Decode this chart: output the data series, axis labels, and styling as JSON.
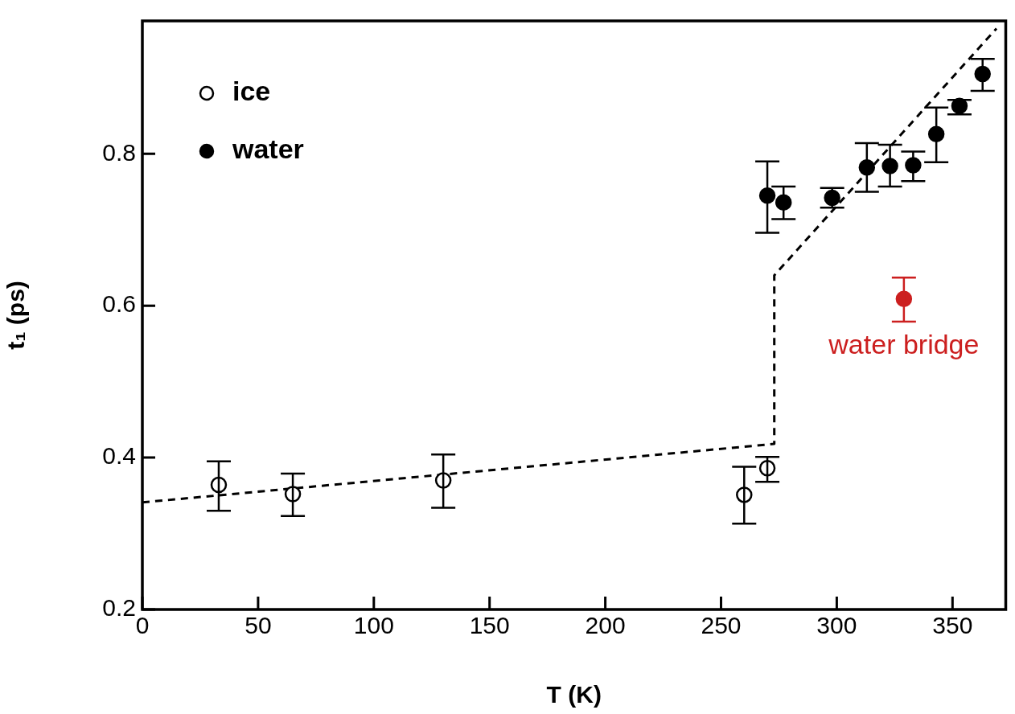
{
  "chart_data": {
    "type": "scatter",
    "xlabel": "T (K)",
    "ylabel": "t₁ (ps)",
    "xlim": [
      0,
      373
    ],
    "xticks": [
      0,
      50,
      100,
      150,
      200,
      250,
      300,
      350
    ],
    "ylim": [
      0.2,
      0.975
    ],
    "yticks": [
      0.2,
      0.4,
      0.6,
      0.8
    ],
    "grid": false,
    "legend": "top left",
    "marker": "circle",
    "series": [
      {
        "name": "ice",
        "color": "#ffffff",
        "x": [
          33,
          65,
          130,
          260,
          270
        ],
        "values": [
          0.364,
          0.352,
          0.37,
          0.351,
          0.386
        ],
        "errors": [
          [
            0.33,
            0.395
          ],
          [
            0.323,
            0.379
          ],
          [
            0.334,
            0.404
          ],
          [
            0.313,
            0.388
          ],
          [
            0.368,
            0.401
          ]
        ]
      },
      {
        "name": "water",
        "color": "#000000",
        "x": [
          270,
          277,
          298,
          313,
          323,
          333,
          343,
          353,
          363
        ],
        "values": [
          0.745,
          0.736,
          0.742,
          0.782,
          0.784,
          0.785,
          0.826,
          0.863,
          0.905
        ],
        "errors": [
          [
            0.696,
            0.79
          ],
          [
            0.714,
            0.757
          ],
          [
            0.729,
            0.755
          ],
          [
            0.75,
            0.814
          ],
          [
            0.757,
            0.812
          ],
          [
            0.764,
            0.803
          ],
          [
            0.789,
            0.861
          ],
          [
            0.852,
            0.871
          ],
          [
            0.883,
            0.925
          ]
        ]
      },
      {
        "color": "#cc1f1f",
        "x": [
          329
        ],
        "values": [
          0.609
        ],
        "errors": [
          [
            0.579,
            0.637
          ]
        ]
      },
      {
        "type": "line",
        "color": "#000000",
        "marker": "none",
        "line_style": "dashed",
        "x": [
          0,
          273,
          273,
          369
        ],
        "values": [
          0.341,
          0.418,
          0.64,
          0.965
        ]
      }
    ],
    "annotations": [
      {
        "text": "water bridge",
        "x": 329,
        "y": 0.609
      }
    ]
  }
}
